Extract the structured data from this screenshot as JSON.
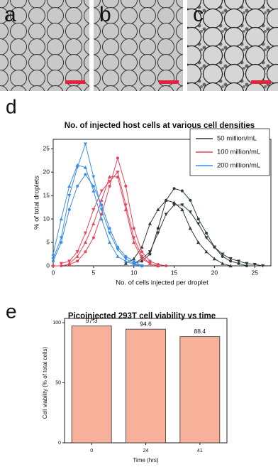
{
  "panel_labels": [
    "a",
    "b",
    "c",
    "d",
    "e"
  ],
  "chart_data": [
    {
      "type": "line",
      "title": "No. of injected host cells at various cell densities",
      "x_label": "No. of cells injected per droplet",
      "y_label": "% of total droplets",
      "x": [
        0,
        1,
        2,
        3,
        4,
        5,
        6,
        7,
        8,
        9,
        10,
        11,
        12,
        13,
        14,
        15,
        16,
        17,
        18,
        19,
        20,
        21,
        22,
        23,
        24,
        25,
        26
      ],
      "xlim": [
        0,
        27
      ],
      "xticks": [
        0,
        5,
        10,
        15,
        20,
        25
      ],
      "ylim": [
        0,
        27
      ],
      "yticks": [
        0,
        5,
        10,
        15,
        20,
        25
      ],
      "legend": "upper right",
      "series": [
        {
          "name": "50 million/mL",
          "color": "#2f3b37",
          "curves": [
            {
              "marker": "circle",
              "values": [
                null,
                null,
                null,
                null,
                null,
                null,
                null,
                null,
                null,
                null,
                0.5,
                1,
                2.5,
                8,
                14,
                16.5,
                16,
                14,
                10,
                7,
                4,
                2,
                1,
                0.5,
                0,
                null,
                null
              ]
            },
            {
              "marker": "triangle",
              "values": [
                null,
                null,
                null,
                null,
                null,
                null,
                null,
                null,
                null,
                0.5,
                1.5,
                4,
                9,
                12,
                14,
                13.5,
                12,
                8,
                5,
                3,
                1.5,
                0.5,
                0,
                null,
                null,
                null,
                null
              ]
            },
            {
              "marker": "triangle-down",
              "values": [
                null,
                null,
                null,
                null,
                null,
                null,
                null,
                null,
                null,
                null,
                0.5,
                1.5,
                3,
                7,
                11,
                13,
                13,
                11.5,
                9,
                6,
                4,
                2.5,
                1.5,
                1,
                0.5,
                0.3,
                0
              ]
            }
          ]
        },
        {
          "name": "100 million/mL",
          "color": "#e8435a",
          "curves": [
            {
              "marker": "circle",
              "values": [
                0,
                0,
                0.3,
                1,
                3,
                6,
                11,
                17,
                23,
                17,
                8,
                3,
                1,
                0.3,
                0,
                null,
                null,
                null,
                null,
                null,
                null,
                null,
                null,
                null,
                null,
                null,
                null
              ]
            },
            {
              "marker": "triangle",
              "values": [
                null,
                null,
                0.5,
                2,
                5,
                9,
                14,
                19,
                19,
                12,
                5,
                1.5,
                0.5,
                0,
                null,
                null,
                null,
                null,
                null,
                null,
                null,
                null,
                null,
                null,
                null,
                null,
                null
              ]
            },
            {
              "marker": "triangle-down",
              "values": [
                null,
                0.5,
                1,
                3,
                7,
                12,
                16,
                18,
                20,
                13,
                6,
                2,
                0.5,
                0,
                null,
                null,
                null,
                null,
                null,
                null,
                null,
                null,
                null,
                null,
                null,
                null,
                null
              ]
            }
          ]
        },
        {
          "name": "200 million/mL",
          "color": "#3a8ee6",
          "curves": [
            {
              "marker": "triangle-down",
              "values": [
                1.5,
                6,
                15,
                21,
                26,
                19,
                12,
                7,
                3.5,
                1.5,
                0.5,
                0,
                null,
                null,
                null,
                null,
                null,
                null,
                null,
                null,
                null,
                null,
                null,
                null,
                null,
                null,
                null
              ]
            },
            {
              "marker": "triangle",
              "values": [
                2.5,
                10,
                17,
                21.5,
                21,
                16,
                10,
                5,
                2,
                1,
                0.3,
                0,
                null,
                null,
                null,
                null,
                null,
                null,
                null,
                null,
                null,
                null,
                null,
                null,
                null,
                null,
                null
              ]
            },
            {
              "marker": "circle",
              "values": [
                1,
                5,
                12,
                17,
                19.5,
                17,
                13,
                8,
                4,
                2,
                1,
                0,
                null,
                null,
                null,
                null,
                null,
                null,
                null,
                null,
                null,
                null,
                null,
                null,
                null,
                null,
                null
              ]
            }
          ]
        }
      ]
    },
    {
      "type": "bar",
      "title": "Picoinjected 293T cell viability vs time",
      "x_label": "Time (hrs)",
      "y_label": "Cell viability (% of total cells)",
      "categories": [
        "0",
        "24",
        "41"
      ],
      "values": [
        97.3,
        94.6,
        88.4
      ],
      "color": "#f7b09a",
      "ylim": [
        0,
        100
      ],
      "yticks": [
        0,
        50,
        100
      ]
    }
  ]
}
